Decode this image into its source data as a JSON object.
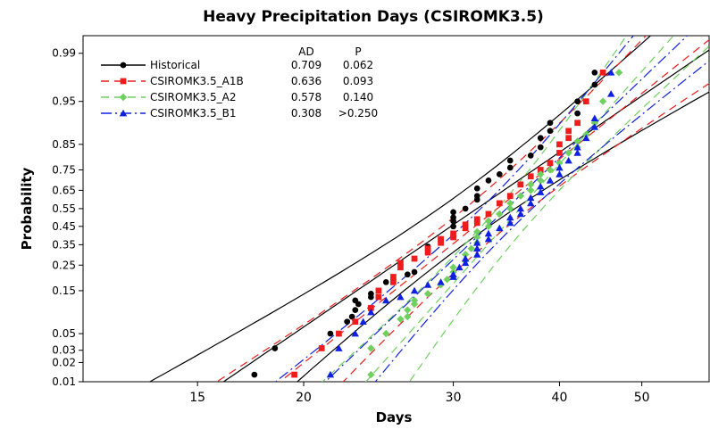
{
  "chart_data": {
    "type": "scatter",
    "title": "Heavy Precipitation Days (CSIROMK3.5)",
    "xlabel": "Days",
    "ylabel": "Probability",
    "x_scale": "log",
    "y_scale": "normal-probability",
    "xlim": [
      11,
      60
    ],
    "ylim": [
      0.01,
      0.995
    ],
    "x_ticks": [
      15,
      20,
      30,
      40,
      50
    ],
    "x_tick_labels": [
      "15",
      "20",
      "30",
      "40",
      "50"
    ],
    "y_ticks": [
      0.01,
      0.02,
      0.03,
      0.05,
      0.15,
      0.25,
      0.35,
      0.45,
      0.55,
      0.65,
      0.75,
      0.85,
      0.95,
      0.99
    ],
    "y_tick_labels": [
      "0.01",
      "0.02",
      "0.03",
      "0.05",
      "0.15",
      "0.25",
      "0.35",
      "0.45",
      "0.55",
      "0.65",
      "0.75",
      "0.85",
      "0.95",
      "0.99"
    ],
    "grid": false,
    "legend_position": "top-left",
    "legend_headers": [
      "AD",
      "P"
    ],
    "series": [
      {
        "name": "Historical",
        "color": "#000000",
        "marker": "circle",
        "line": "solid",
        "AD": "0.709",
        "P": "0.062",
        "fit": {
          "mu": 3.43,
          "sigma": 0.28
        },
        "points": [
          [
            17.5,
            0.013
          ],
          [
            18.5,
            0.032
          ],
          [
            21.5,
            0.05
          ],
          [
            22.5,
            0.07
          ],
          [
            22.8,
            0.08
          ],
          [
            23,
            0.095
          ],
          [
            23.2,
            0.11
          ],
          [
            23,
            0.12
          ],
          [
            24,
            0.13
          ],
          [
            24,
            0.14
          ],
          [
            25,
            0.18
          ],
          [
            26.5,
            0.21
          ],
          [
            27,
            0.22
          ],
          [
            28,
            0.34
          ],
          [
            29,
            0.38
          ],
          [
            30,
            0.45
          ],
          [
            30,
            0.48
          ],
          [
            30,
            0.5
          ],
          [
            30,
            0.53
          ],
          [
            31,
            0.55
          ],
          [
            32,
            0.6
          ],
          [
            32,
            0.62
          ],
          [
            32,
            0.66
          ],
          [
            33,
            0.7
          ],
          [
            34,
            0.73
          ],
          [
            35,
            0.76
          ],
          [
            35,
            0.79
          ],
          [
            37,
            0.81
          ],
          [
            38,
            0.84
          ],
          [
            38,
            0.87
          ],
          [
            39,
            0.89
          ],
          [
            39,
            0.91
          ],
          [
            42,
            0.93
          ],
          [
            42,
            0.95
          ],
          [
            44,
            0.97
          ],
          [
            44,
            0.98
          ]
        ]
      },
      {
        "name": "CSIROMK3.5_A1B",
        "color": "#ee1c1c",
        "marker": "square",
        "line": "dash",
        "AD": "0.636",
        "P": "0.093",
        "fit": {
          "mu": 3.49,
          "sigma": 0.24
        },
        "points": [
          [
            19.5,
            0.013
          ],
          [
            21,
            0.032
          ],
          [
            22,
            0.05
          ],
          [
            23,
            0.07
          ],
          [
            24,
            0.1
          ],
          [
            24.5,
            0.13
          ],
          [
            24.5,
            0.15
          ],
          [
            25.5,
            0.18
          ],
          [
            25.5,
            0.2
          ],
          [
            26,
            0.24
          ],
          [
            26,
            0.26
          ],
          [
            27,
            0.28
          ],
          [
            28,
            0.31
          ],
          [
            28,
            0.33
          ],
          [
            29,
            0.36
          ],
          [
            29,
            0.38
          ],
          [
            30,
            0.39
          ],
          [
            30,
            0.41
          ],
          [
            31,
            0.44
          ],
          [
            31,
            0.46
          ],
          [
            32,
            0.47
          ],
          [
            32,
            0.49
          ],
          [
            33,
            0.52
          ],
          [
            34,
            0.58
          ],
          [
            35,
            0.62
          ],
          [
            36,
            0.68
          ],
          [
            37,
            0.72
          ],
          [
            38,
            0.75
          ],
          [
            39,
            0.78
          ],
          [
            40,
            0.82
          ],
          [
            40,
            0.85
          ],
          [
            41,
            0.87
          ],
          [
            41,
            0.89
          ],
          [
            42,
            0.91
          ],
          [
            43,
            0.95
          ],
          [
            45,
            0.98
          ]
        ]
      },
      {
        "name": "CSIROMK3.5_A2",
        "color": "#6fcf5f",
        "marker": "diamond",
        "line": "dash",
        "AD": "0.578",
        "P": "0.140",
        "fit": {
          "mu": 3.56,
          "sigma": 0.17
        },
        "points": [
          [
            24,
            0.013
          ],
          [
            24,
            0.032
          ],
          [
            25,
            0.05
          ],
          [
            26,
            0.075
          ],
          [
            26.5,
            0.08
          ],
          [
            26.5,
            0.095
          ],
          [
            27,
            0.11
          ],
          [
            27,
            0.12
          ],
          [
            28,
            0.14
          ],
          [
            29,
            0.17
          ],
          [
            29.5,
            0.19
          ],
          [
            30,
            0.22
          ],
          [
            30,
            0.24
          ],
          [
            31,
            0.27
          ],
          [
            31,
            0.3
          ],
          [
            31.5,
            0.33
          ],
          [
            32,
            0.36
          ],
          [
            32,
            0.39
          ],
          [
            32,
            0.42
          ],
          [
            33,
            0.45
          ],
          [
            33,
            0.48
          ],
          [
            34,
            0.52
          ],
          [
            35,
            0.55
          ],
          [
            35,
            0.58
          ],
          [
            36,
            0.62
          ],
          [
            37,
            0.65
          ],
          [
            37,
            0.68
          ],
          [
            38,
            0.7
          ],
          [
            38,
            0.73
          ],
          [
            39,
            0.75
          ],
          [
            40,
            0.78
          ],
          [
            41,
            0.82
          ],
          [
            42,
            0.84
          ],
          [
            42,
            0.86
          ],
          [
            43,
            0.88
          ],
          [
            44,
            0.91
          ],
          [
            45,
            0.95
          ],
          [
            47,
            0.98
          ]
        ]
      },
      {
        "name": "CSIROMK3.5_B1",
        "color": "#1020e0",
        "marker": "triangle",
        "line": "dashdot",
        "AD": "0.308",
        "P": ">0.250",
        "fit": {
          "mu": 3.52,
          "sigma": 0.2
        },
        "points": [
          [
            21.5,
            0.013
          ],
          [
            22,
            0.032
          ],
          [
            23,
            0.05
          ],
          [
            23.5,
            0.07
          ],
          [
            24,
            0.09
          ],
          [
            25,
            0.12
          ],
          [
            26,
            0.13
          ],
          [
            27,
            0.15
          ],
          [
            28,
            0.17
          ],
          [
            29,
            0.18
          ],
          [
            30,
            0.2
          ],
          [
            30,
            0.21
          ],
          [
            30.5,
            0.24
          ],
          [
            31,
            0.26
          ],
          [
            31,
            0.28
          ],
          [
            32,
            0.3
          ],
          [
            32,
            0.33
          ],
          [
            32,
            0.36
          ],
          [
            33,
            0.38
          ],
          [
            33,
            0.41
          ],
          [
            34,
            0.44
          ],
          [
            35,
            0.47
          ],
          [
            35,
            0.5
          ],
          [
            36,
            0.52
          ],
          [
            36,
            0.55
          ],
          [
            37,
            0.58
          ],
          [
            37,
            0.61
          ],
          [
            38,
            0.64
          ],
          [
            38,
            0.67
          ],
          [
            39,
            0.7
          ],
          [
            40,
            0.73
          ],
          [
            40,
            0.76
          ],
          [
            41,
            0.79
          ],
          [
            42,
            0.82
          ],
          [
            42,
            0.84
          ],
          [
            43,
            0.87
          ],
          [
            44,
            0.9
          ],
          [
            44,
            0.92
          ],
          [
            46,
            0.96
          ],
          [
            46,
            0.98
          ]
        ]
      }
    ]
  }
}
